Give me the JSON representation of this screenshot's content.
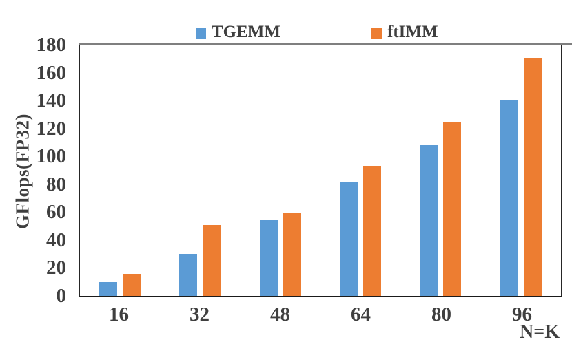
{
  "chart_data": {
    "type": "bar",
    "title": "",
    "categories": [
      "16",
      "32",
      "48",
      "64",
      "80",
      "96"
    ],
    "series": [
      {
        "name": "TGEMM",
        "color": "#5B9BD5",
        "values": [
          10,
          30,
          55,
          82,
          108,
          140
        ]
      },
      {
        "name": "ftIMM",
        "color": "#ED7D31",
        "values": [
          16,
          51,
          59,
          93,
          125,
          170
        ]
      }
    ],
    "xlabel": "N=K",
    "ylabel": "GFlops(FP32)",
    "ylim": [
      0,
      180
    ],
    "ytick_step": 20,
    "legend_position": "top",
    "grid": false
  },
  "colors": {
    "text": "#3f3f3f",
    "axis": "#262626",
    "plot_top_border": "#7f7f7f",
    "background": "#ffffff"
  }
}
